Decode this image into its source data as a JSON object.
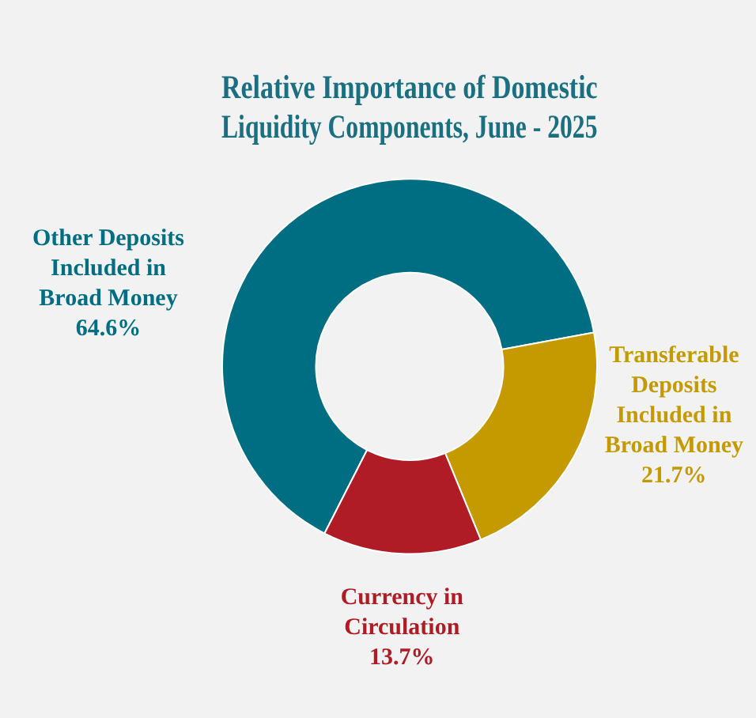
{
  "chart_data": {
    "type": "donut",
    "title": "Relative Importance of Domestic Liquidity Components, June - 2025",
    "categories": [
      "Other Deposits Included in Broad Money",
      "Transferable Deposits Included in Broad Money",
      "Currency in Circulation"
    ],
    "values": [
      64.6,
      21.7,
      13.7
    ],
    "colors": [
      "#006e82",
      "#c49a00",
      "#b01c26"
    ],
    "value_labels": [
      "64.6%",
      "21.7%",
      "13.7%"
    ],
    "legend": false
  }
}
